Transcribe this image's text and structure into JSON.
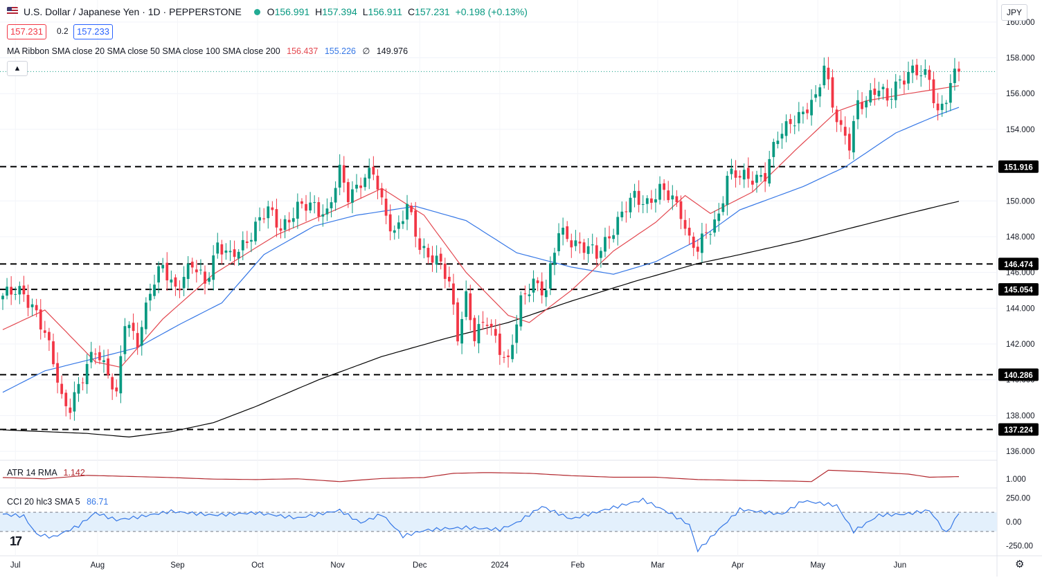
{
  "header": {
    "symbol_title": "U.S. Dollar / Japanese Yen · 1D · PEPPERSTONE",
    "ohlc": [
      {
        "label": "O",
        "value": "156.991"
      },
      {
        "label": "H",
        "value": "157.394"
      },
      {
        "label": "L",
        "value": "156.911"
      },
      {
        "label": "C",
        "value": "157.231"
      },
      {
        "label": "",
        "value": "+0.198 (+0.13%)"
      }
    ],
    "sell_price": "157.231",
    "spread": "0.2",
    "buy_price": "157.233",
    "currency_button": "JPY"
  },
  "legends": {
    "ma_ribbon": {
      "label": "MA Ribbon SMA close 20 SMA close 50 SMA close 100 SMA close 200",
      "values": [
        "156.437",
        "155.226",
        "∅",
        "149.976"
      ],
      "colors": [
        "#e34850",
        "#3577e6",
        "#131722",
        "#131722"
      ]
    },
    "atr": {
      "label": "ATR 14 RMA",
      "value": "1.142"
    },
    "cci": {
      "label": "CCI 20 hlc3 SMA 5",
      "value": "86.71"
    }
  },
  "colors": {
    "up": "#089981",
    "down": "#f23645",
    "sma20": "#e34850",
    "sma50": "#3577e6",
    "sma200": "#000000",
    "atr": "#b2282e",
    "cci": "#3577e6",
    "current_price_line": "#089981",
    "level_line": "#000000"
  },
  "chart_data": {
    "type": "candlestick",
    "x_ticks": [
      "Jul",
      "Aug",
      "Sep",
      "Oct",
      "Nov",
      "Dec",
      "2024",
      "Feb",
      "Mar",
      "Apr",
      "May",
      "Jun"
    ],
    "y_ticks": [
      "160.000",
      "158.000",
      "156.000",
      "154.000",
      "152.000",
      "150.000",
      "148.000",
      "146.000",
      "144.000",
      "142.000",
      "140.000",
      "138.000",
      "136.000"
    ],
    "ylim": [
      135.5,
      161
    ],
    "current_price": 157.231,
    "support_resistance_levels": [
      "151.916",
      "146.474",
      "145.054",
      "140.286",
      "137.224"
    ],
    "close_anchors": [
      {
        "t": 0,
        "v": 144.7
      },
      {
        "t": 5,
        "v": 144.9
      },
      {
        "t": 8,
        "v": 143.8
      },
      {
        "t": 12,
        "v": 141.0
      },
      {
        "t": 14,
        "v": 139.0
      },
      {
        "t": 16,
        "v": 138.6
      },
      {
        "t": 19,
        "v": 140.0
      },
      {
        "t": 22,
        "v": 141.8
      },
      {
        "t": 25,
        "v": 140.5
      },
      {
        "t": 27,
        "v": 138.9
      },
      {
        "t": 29,
        "v": 143.2
      },
      {
        "t": 32,
        "v": 142.3
      },
      {
        "t": 35,
        "v": 144.9
      },
      {
        "t": 38,
        "v": 146.3
      },
      {
        "t": 41,
        "v": 145.2
      },
      {
        "t": 45,
        "v": 146.3
      },
      {
        "t": 48,
        "v": 145.5
      },
      {
        "t": 51,
        "v": 147.6
      },
      {
        "t": 54,
        "v": 146.7
      },
      {
        "t": 57,
        "v": 147.6
      },
      {
        "t": 60,
        "v": 148.6
      },
      {
        "t": 63,
        "v": 149.4
      },
      {
        "t": 66,
        "v": 148.6
      },
      {
        "t": 70,
        "v": 149.5
      },
      {
        "t": 74,
        "v": 149.8
      },
      {
        "t": 77,
        "v": 149.3
      },
      {
        "t": 80,
        "v": 151.5
      },
      {
        "t": 82,
        "v": 150.3
      },
      {
        "t": 85,
        "v": 151.2
      },
      {
        "t": 88,
        "v": 151.5
      },
      {
        "t": 90,
        "v": 149.8
      },
      {
        "t": 93,
        "v": 148.3
      },
      {
        "t": 96,
        "v": 149.6
      },
      {
        "t": 99,
        "v": 147.4
      },
      {
        "t": 102,
        "v": 147.0
      },
      {
        "t": 104,
        "v": 146.4
      },
      {
        "t": 106,
        "v": 145.2
      },
      {
        "t": 108,
        "v": 142.5
      },
      {
        "t": 110,
        "v": 144.8
      },
      {
        "t": 112,
        "v": 142.4
      },
      {
        "t": 115,
        "v": 143.2
      },
      {
        "t": 118,
        "v": 141.9
      },
      {
        "t": 120,
        "v": 141.0
      },
      {
        "t": 123,
        "v": 144.2
      },
      {
        "t": 126,
        "v": 145.6
      },
      {
        "t": 129,
        "v": 145.0
      },
      {
        "t": 132,
        "v": 148.2
      },
      {
        "t": 135,
        "v": 147.9
      },
      {
        "t": 138,
        "v": 147.4
      },
      {
        "t": 141,
        "v": 146.9
      },
      {
        "t": 144,
        "v": 148.2
      },
      {
        "t": 147,
        "v": 149.2
      },
      {
        "t": 150,
        "v": 150.2
      },
      {
        "t": 153,
        "v": 150.0
      },
      {
        "t": 156,
        "v": 150.5
      },
      {
        "t": 159,
        "v": 150.1
      },
      {
        "t": 161,
        "v": 149.5
      },
      {
        "t": 163,
        "v": 147.8
      },
      {
        "t": 165,
        "v": 147.2
      },
      {
        "t": 167,
        "v": 148.1
      },
      {
        "t": 170,
        "v": 149.3
      },
      {
        "t": 172,
        "v": 151.4
      },
      {
        "t": 175,
        "v": 151.3
      },
      {
        "t": 178,
        "v": 151.4
      },
      {
        "t": 181,
        "v": 151.4
      },
      {
        "t": 184,
        "v": 153.5
      },
      {
        "t": 187,
        "v": 154.6
      },
      {
        "t": 190,
        "v": 154.8
      },
      {
        "t": 193,
        "v": 155.6
      },
      {
        "t": 195,
        "v": 157.8
      },
      {
        "t": 197,
        "v": 155.5
      },
      {
        "t": 199,
        "v": 153.8
      },
      {
        "t": 201,
        "v": 153.0
      },
      {
        "t": 203,
        "v": 155.5
      },
      {
        "t": 205,
        "v": 155.8
      },
      {
        "t": 208,
        "v": 156.2
      },
      {
        "t": 210,
        "v": 155.5
      },
      {
        "t": 212,
        "v": 156.6
      },
      {
        "t": 215,
        "v": 157.2
      },
      {
        "t": 218,
        "v": 157.0
      },
      {
        "t": 220,
        "v": 156.9
      },
      {
        "t": 222,
        "v": 155.0
      },
      {
        "t": 224,
        "v": 155.8
      },
      {
        "t": 226,
        "v": 156.9
      },
      {
        "t": 227,
        "v": 157.23
      }
    ],
    "sma20_anchors": [
      {
        "t": 0,
        "v": 142.8
      },
      {
        "t": 10,
        "v": 143.9
      },
      {
        "t": 22,
        "v": 141.0
      },
      {
        "t": 28,
        "v": 140.7
      },
      {
        "t": 38,
        "v": 143.4
      },
      {
        "t": 50,
        "v": 145.9
      },
      {
        "t": 65,
        "v": 148.1
      },
      {
        "t": 80,
        "v": 149.6
      },
      {
        "t": 90,
        "v": 150.7
      },
      {
        "t": 100,
        "v": 149.2
      },
      {
        "t": 110,
        "v": 146.0
      },
      {
        "t": 120,
        "v": 143.6
      },
      {
        "t": 125,
        "v": 143.2
      },
      {
        "t": 135,
        "v": 145.0
      },
      {
        "t": 145,
        "v": 147.2
      },
      {
        "t": 155,
        "v": 148.8
      },
      {
        "t": 162,
        "v": 150.3
      },
      {
        "t": 168,
        "v": 149.3
      },
      {
        "t": 178,
        "v": 150.5
      },
      {
        "t": 188,
        "v": 152.8
      },
      {
        "t": 198,
        "v": 155.0
      },
      {
        "t": 205,
        "v": 155.6
      },
      {
        "t": 215,
        "v": 156.0
      },
      {
        "t": 227,
        "v": 156.44
      }
    ],
    "sma50_anchors": [
      {
        "t": 0,
        "v": 139.3
      },
      {
        "t": 10,
        "v": 140.5
      },
      {
        "t": 22,
        "v": 141.2
      },
      {
        "t": 32,
        "v": 141.8
      },
      {
        "t": 42,
        "v": 143.1
      },
      {
        "t": 52,
        "v": 144.3
      },
      {
        "t": 62,
        "v": 147.0
      },
      {
        "t": 74,
        "v": 148.6
      },
      {
        "t": 84,
        "v": 149.2
      },
      {
        "t": 98,
        "v": 149.7
      },
      {
        "t": 110,
        "v": 148.9
      },
      {
        "t": 122,
        "v": 147.1
      },
      {
        "t": 135,
        "v": 146.3
      },
      {
        "t": 145,
        "v": 145.9
      },
      {
        "t": 155,
        "v": 146.6
      },
      {
        "t": 165,
        "v": 147.8
      },
      {
        "t": 175,
        "v": 149.5
      },
      {
        "t": 190,
        "v": 150.8
      },
      {
        "t": 200,
        "v": 151.9
      },
      {
        "t": 212,
        "v": 153.8
      },
      {
        "t": 222,
        "v": 154.8
      },
      {
        "t": 227,
        "v": 155.23
      }
    ],
    "sma200_anchors": [
      {
        "t": 0,
        "v": 137.2
      },
      {
        "t": 10,
        "v": 137.1
      },
      {
        "t": 20,
        "v": 137.0
      },
      {
        "t": 30,
        "v": 136.8
      },
      {
        "t": 40,
        "v": 137.1
      },
      {
        "t": 50,
        "v": 137.6
      },
      {
        "t": 60,
        "v": 138.5
      },
      {
        "t": 75,
        "v": 140.0
      },
      {
        "t": 90,
        "v": 141.3
      },
      {
        "t": 105,
        "v": 142.3
      },
      {
        "t": 120,
        "v": 143.2
      },
      {
        "t": 135,
        "v": 144.4
      },
      {
        "t": 150,
        "v": 145.5
      },
      {
        "t": 165,
        "v": 146.5
      },
      {
        "t": 175,
        "v": 147.0
      },
      {
        "t": 190,
        "v": 147.8
      },
      {
        "t": 200,
        "v": 148.4
      },
      {
        "t": 215,
        "v": 149.3
      },
      {
        "t": 227,
        "v": 149.98
      }
    ],
    "atr": {
      "label": "ATR 14 RMA",
      "y_ticks": [
        "1.000"
      ],
      "ylim": [
        0.5,
        2.1
      ],
      "anchors": [
        {
          "t": 0,
          "v": 1.08
        },
        {
          "t": 10,
          "v": 1.0
        },
        {
          "t": 20,
          "v": 1.22
        },
        {
          "t": 30,
          "v": 1.15
        },
        {
          "t": 40,
          "v": 1.08
        },
        {
          "t": 50,
          "v": 0.98
        },
        {
          "t": 60,
          "v": 0.95
        },
        {
          "t": 70,
          "v": 1.0
        },
        {
          "t": 80,
          "v": 0.82
        },
        {
          "t": 90,
          "v": 1.02
        },
        {
          "t": 100,
          "v": 1.08
        },
        {
          "t": 107,
          "v": 1.35
        },
        {
          "t": 115,
          "v": 1.4
        },
        {
          "t": 125,
          "v": 1.35
        },
        {
          "t": 135,
          "v": 1.2
        },
        {
          "t": 145,
          "v": 1.1
        },
        {
          "t": 155,
          "v": 1.1
        },
        {
          "t": 165,
          "v": 0.95
        },
        {
          "t": 175,
          "v": 0.9
        },
        {
          "t": 188,
          "v": 0.85
        },
        {
          "t": 192,
          "v": 0.82
        },
        {
          "t": 196,
          "v": 1.55
        },
        {
          "t": 205,
          "v": 1.45
        },
        {
          "t": 215,
          "v": 1.3
        },
        {
          "t": 220,
          "v": 1.1
        },
        {
          "t": 227,
          "v": 1.14
        }
      ]
    },
    "cci": {
      "label": "CCI 20 hlc3 SMA 5",
      "y_ticks": [
        "250.00",
        "0.00",
        "-250.00"
      ],
      "ylim": [
        -340,
        340
      ],
      "band": [
        -100,
        100
      ],
      "anchors": [
        {
          "t": 0,
          "v": 80
        },
        {
          "t": 5,
          "v": 60
        },
        {
          "t": 8,
          "v": -130
        },
        {
          "t": 12,
          "v": -160
        },
        {
          "t": 18,
          "v": -40
        },
        {
          "t": 22,
          "v": 95
        },
        {
          "t": 27,
          "v": 20
        },
        {
          "t": 32,
          "v": 50
        },
        {
          "t": 40,
          "v": 110
        },
        {
          "t": 50,
          "v": 70
        },
        {
          "t": 60,
          "v": 95
        },
        {
          "t": 70,
          "v": 40
        },
        {
          "t": 80,
          "v": 120
        },
        {
          "t": 85,
          "v": -10
        },
        {
          "t": 90,
          "v": 80
        },
        {
          "t": 95,
          "v": -150
        },
        {
          "t": 100,
          "v": -90
        },
        {
          "t": 105,
          "v": -70
        },
        {
          "t": 110,
          "v": -60
        },
        {
          "t": 118,
          "v": -80
        },
        {
          "t": 122,
          "v": -10
        },
        {
          "t": 128,
          "v": 160
        },
        {
          "t": 135,
          "v": 30
        },
        {
          "t": 145,
          "v": 150
        },
        {
          "t": 152,
          "v": 230
        },
        {
          "t": 158,
          "v": 100
        },
        {
          "t": 163,
          "v": -30
        },
        {
          "t": 165,
          "v": -300
        },
        {
          "t": 170,
          "v": -80
        },
        {
          "t": 175,
          "v": 130
        },
        {
          "t": 185,
          "v": 80
        },
        {
          "t": 190,
          "v": 220
        },
        {
          "t": 198,
          "v": 170
        },
        {
          "t": 202,
          "v": -100
        },
        {
          "t": 208,
          "v": 70
        },
        {
          "t": 214,
          "v": 80
        },
        {
          "t": 220,
          "v": 120
        },
        {
          "t": 224,
          "v": -120
        },
        {
          "t": 227,
          "v": 86.71
        }
      ]
    }
  }
}
